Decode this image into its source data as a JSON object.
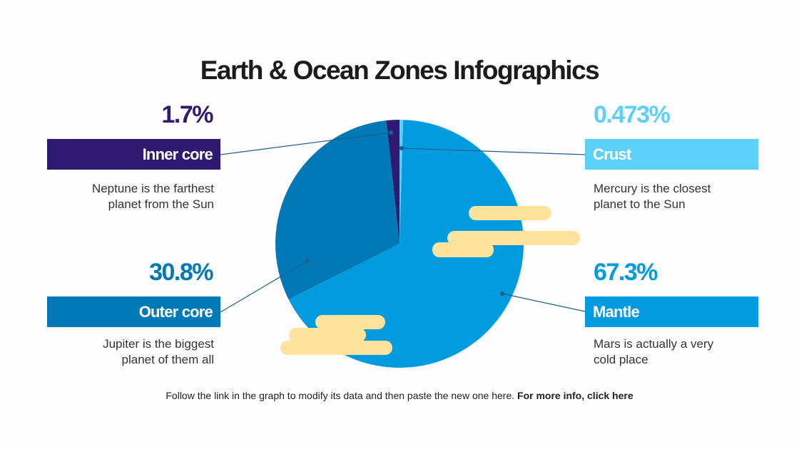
{
  "title": "Earth & Ocean Zones Infographics",
  "chart_data": {
    "type": "pie",
    "title": "",
    "start": "top",
    "direction": "clockwise",
    "slices": [
      {
        "label": "Crust",
        "value": 0.473,
        "display": "0.473%",
        "color": "#5dd0f7",
        "description": "Mercury is the closest planet to the Sun"
      },
      {
        "label": "Mantle",
        "value": 67.3,
        "display": "67.3%",
        "color": "#039be0",
        "description": "Mars is actually a very cold place"
      },
      {
        "label": "Outer core",
        "value": 30.8,
        "display": "30.8%",
        "color": "#0279b7",
        "description": "Jupiter is the biggest planet of them all"
      },
      {
        "label": "Inner core",
        "value": 1.7,
        "display": "1.7%",
        "color": "#2e1a70",
        "description": "Neptune is the farthest planet from the Sun"
      }
    ]
  },
  "labels": {
    "inner_core": {
      "pct": "1.7%",
      "name": "Inner core",
      "desc1": "Neptune is the farthest",
      "desc2": "planet from the Sun"
    },
    "outer_core": {
      "pct": "30.8%",
      "name": "Outer core",
      "desc1": "Jupiter is the biggest",
      "desc2": "planet of them all"
    },
    "crust": {
      "pct": "0.473%",
      "name": "Crust",
      "desc1": "Mercury is the closest",
      "desc2": "planet to the Sun"
    },
    "mantle": {
      "pct": "67.3%",
      "name": "Mantle",
      "desc1": "Mars is actually a very",
      "desc2": "cold place"
    }
  },
  "colors": {
    "cloud": "#fde39b",
    "leader_line": "#1f5f8b"
  },
  "footer": {
    "text": "Follow the link in the graph to modify its data and then paste the new one here. ",
    "link": "For more info, click here"
  }
}
